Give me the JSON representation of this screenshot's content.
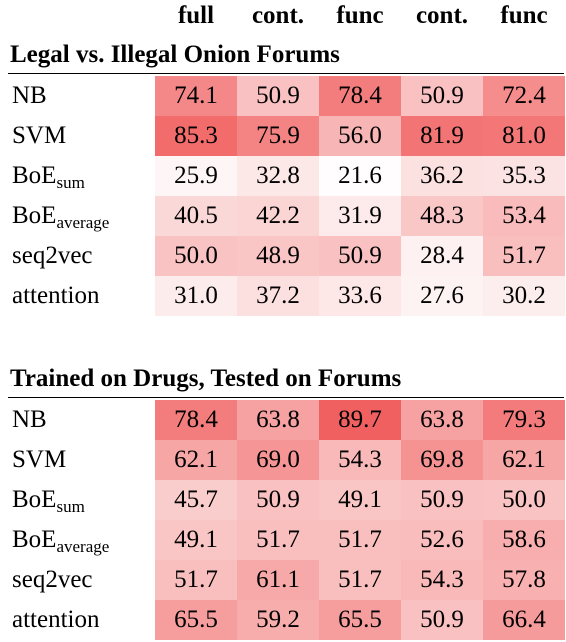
{
  "columns": [
    "full",
    "cont.",
    "func",
    "cont.",
    "func"
  ],
  "sections": [
    {
      "title": "Legal vs. Illegal Onion Forums",
      "rows": [
        {
          "label": "NB",
          "sub": "",
          "values": [
            "74.1",
            "50.9",
            "78.4",
            "50.9",
            "72.4"
          ]
        },
        {
          "label": "SVM",
          "sub": "",
          "values": [
            "85.3",
            "75.9",
            "56.0",
            "81.9",
            "81.0"
          ]
        },
        {
          "label": "BoE",
          "sub": "sum",
          "values": [
            "25.9",
            "32.8",
            "21.6",
            "36.2",
            "35.3"
          ]
        },
        {
          "label": "BoE",
          "sub": "average",
          "values": [
            "40.5",
            "42.2",
            "31.9",
            "48.3",
            "53.4"
          ]
        },
        {
          "label": "seq2vec",
          "sub": "",
          "values": [
            "50.0",
            "48.9",
            "50.9",
            "28.4",
            "51.7"
          ]
        },
        {
          "label": "attention",
          "sub": "",
          "values": [
            "31.0",
            "37.2",
            "33.6",
            "27.6",
            "30.2"
          ]
        }
      ]
    },
    {
      "title": "Trained on Drugs, Tested on Forums",
      "rows": [
        {
          "label": "NB",
          "sub": "",
          "values": [
            "78.4",
            "63.8",
            "89.7",
            "63.8",
            "79.3"
          ]
        },
        {
          "label": "SVM",
          "sub": "",
          "values": [
            "62.1",
            "69.0",
            "54.3",
            "69.8",
            "62.1"
          ]
        },
        {
          "label": "BoE",
          "sub": "sum",
          "values": [
            "45.7",
            "50.9",
            "49.1",
            "50.9",
            "50.0"
          ]
        },
        {
          "label": "BoE",
          "sub": "average",
          "values": [
            "49.1",
            "51.7",
            "51.7",
            "52.6",
            "58.6"
          ]
        },
        {
          "label": "seq2vec",
          "sub": "",
          "values": [
            "51.7",
            "61.1",
            "51.7",
            "54.3",
            "57.8"
          ]
        },
        {
          "label": "attention",
          "sub": "",
          "values": [
            "65.5",
            "59.2",
            "65.5",
            "50.9",
            "66.4"
          ]
        }
      ]
    }
  ],
  "colors": {
    "heat_low": "#ffffff",
    "heat_high": "#f05a5a"
  }
}
